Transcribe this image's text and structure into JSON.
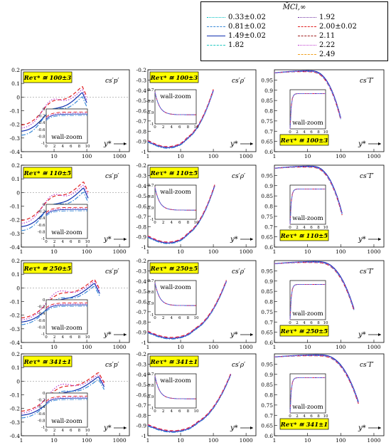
{
  "legend": {
    "title": "M̄Cl,∞",
    "entries": [
      {
        "label": "0.33±0.02",
        "color": "#00c0c0",
        "dash": "dot"
      },
      {
        "label": "0.81±0.02",
        "color": "#3a8ad8",
        "dash": "dashdot"
      },
      {
        "label": "1.49±0.02",
        "color": "#1030b0",
        "dash": "solid"
      },
      {
        "label": "1.82",
        "color": "#20c8c0",
        "dash": "dash"
      },
      {
        "label": "1.92",
        "color": "#7030a0",
        "dash": "dot"
      },
      {
        "label": "2.00±0.02",
        "color": "#e02020",
        "dash": "dash"
      },
      {
        "label": "2.11",
        "color": "#a02020",
        "dash": "dashdot"
      },
      {
        "label": "2.22",
        "color": "#c040d0",
        "dash": "dot"
      },
      {
        "label": "2.49",
        "color": "#f0a020",
        "dash": "dash"
      }
    ]
  },
  "labels": {
    "x": "y*",
    "inset": "wall-zoom",
    "col1": "cs′p′",
    "col2": "cs′ρ′",
    "col3": "cs′T′",
    "re_prefix": "Reτ* ≅ "
  },
  "chart_data": {
    "type": "line",
    "xscale": "log",
    "xlim": [
      1,
      2000
    ],
    "x_ticks": [
      "1",
      "10",
      "100",
      "1000"
    ],
    "inset_x_ticks": [
      "0",
      "2",
      "4",
      "6",
      "8",
      "10"
    ],
    "rows": [
      {
        "re": "100±3",
        "ymax": 100
      },
      {
        "re": "110±5",
        "ymax": 110
      },
      {
        "re": "250±5",
        "ymax": 250
      },
      {
        "re": "341±1",
        "ymax": 341
      }
    ],
    "columns": [
      {
        "quantity": "cs′p′",
        "ylim": [
          -0.4,
          0.2
        ],
        "yticks": [
          "-0.4",
          "-0.3",
          "-0.2",
          "-0.1",
          "0",
          "0.1",
          "0.2"
        ],
        "inset_ylim": [
          -1,
          0
        ],
        "inset_yticks": [
          "-1",
          "-0.8",
          "-0.6",
          "-0.4",
          "-0.2",
          "0"
        ]
      },
      {
        "quantity": "cs′ρ′",
        "ylim": [
          -1,
          -0.2
        ],
        "yticks": [
          "-1",
          "-0.9",
          "-0.8",
          "-0.7",
          "-0.6",
          "-0.5",
          "-0.4",
          "-0.3",
          "-0.2"
        ],
        "inset_ylim": [
          -1,
          -0.7
        ],
        "inset_yticks": [
          "-1",
          "-0.9",
          "-0.8",
          "-0.7"
        ]
      },
      {
        "quantity": "cs′T′",
        "ylim": [
          0.6,
          1.0
        ],
        "yticks": [
          "0.6",
          "0.65",
          "0.7",
          "0.75",
          "0.8",
          "0.85",
          "0.9",
          "0.95"
        ],
        "inset_ylim": [
          0,
          1
        ],
        "inset_yticks": []
      }
    ]
  }
}
